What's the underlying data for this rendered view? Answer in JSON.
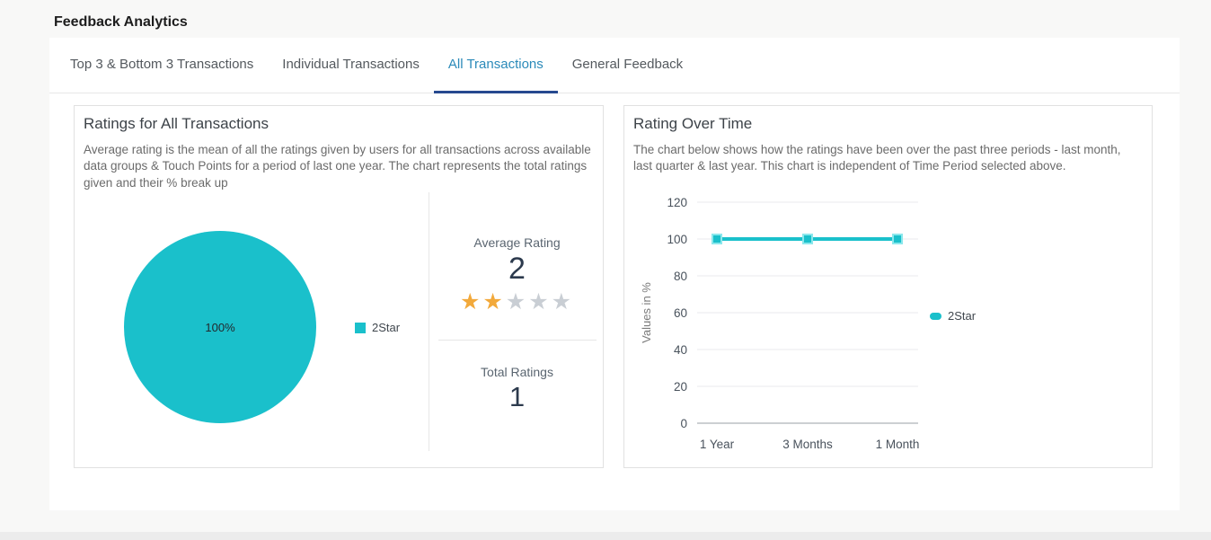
{
  "page": {
    "title": "Feedback Analytics"
  },
  "tabs": [
    {
      "label": "Top 3 & Bottom 3 Transactions",
      "active": false
    },
    {
      "label": "Individual Transactions",
      "active": false
    },
    {
      "label": "All Transactions",
      "active": true
    },
    {
      "label": "General Feedback",
      "active": false
    }
  ],
  "cards": {
    "ratings": {
      "title": "Ratings for All Transactions",
      "description": "Average rating is the mean of all the ratings given by users for all transactions across available data groups & Touch Points for a period of last one year. The chart represents the total ratings given and their % break up",
      "pie_label": "100%",
      "legend": "2Star",
      "average_rating": {
        "label": "Average Rating",
        "value": "2",
        "stars_filled": "★★",
        "stars_empty": "★★★",
        "max_stars": 5
      },
      "total_ratings": {
        "label": "Total Ratings",
        "value": "1"
      }
    },
    "over_time": {
      "title": "Rating Over Time",
      "description": "The chart below shows how the ratings have been over the past three periods - last month, last quarter & last year. This chart is independent of Time Period selected above.",
      "legend": "2Star"
    }
  },
  "colors": {
    "accent_teal": "#1ac0cb",
    "marker_stroke": "#8ce8ec",
    "star_filled": "#f2a93b",
    "star_empty": "#c9ced4",
    "tab_active_text": "#2b8ab9",
    "tab_underline": "#26498f",
    "grid_line": "#e9eaec",
    "axis_zero_line": "#9aa0a6"
  },
  "chart_data": [
    {
      "type": "pie",
      "title": "Ratings for All Transactions",
      "labels": [
        "2Star"
      ],
      "values": [
        100
      ],
      "unit": "%",
      "colors": [
        "#1ac0cb"
      ],
      "legend_position": "right"
    },
    {
      "type": "line",
      "title": "Rating Over Time",
      "categories": [
        "1 Year",
        "3 Months",
        "1 Month"
      ],
      "series": [
        {
          "name": "2Star",
          "values": [
            100,
            100,
            100
          ]
        }
      ],
      "xlabel": "",
      "ylabel": "Values in %",
      "ylim": [
        0,
        120
      ],
      "yticks": [
        0,
        20,
        40,
        60,
        80,
        100,
        120
      ],
      "grid": true,
      "legend_position": "right"
    }
  ]
}
